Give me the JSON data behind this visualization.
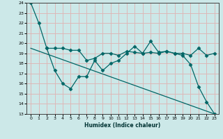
{
  "xlabel": "Humidex (Indice chaleur)",
  "bg_color": "#cce8e8",
  "grid_color": "#ddb8b8",
  "line_color": "#006666",
  "xlim_min": -0.5,
  "xlim_max": 23.5,
  "ylim_min": 13,
  "ylim_max": 24,
  "xticks": [
    0,
    1,
    2,
    3,
    4,
    5,
    6,
    7,
    8,
    9,
    10,
    11,
    12,
    13,
    14,
    15,
    16,
    17,
    18,
    19,
    20,
    21,
    22,
    23
  ],
  "yticks": [
    13,
    14,
    15,
    16,
    17,
    18,
    19,
    20,
    21,
    22,
    23,
    24
  ],
  "line1_x": [
    0,
    1,
    2,
    3,
    4,
    5,
    6,
    7,
    8,
    9,
    10,
    11,
    12,
    13,
    14,
    15,
    16,
    17,
    18,
    19,
    20,
    21,
    22,
    23
  ],
  "line1_y": [
    24.0,
    22.0,
    19.5,
    19.5,
    19.5,
    19.3,
    19.3,
    18.3,
    18.5,
    19.0,
    19.0,
    18.8,
    19.2,
    19.1,
    19.0,
    19.1,
    19.0,
    19.2,
    19.0,
    19.0,
    18.8,
    19.5,
    18.8,
    19.0
  ],
  "line2_x": [
    2,
    3,
    4,
    5,
    6,
    7,
    8,
    9,
    10,
    11,
    12,
    13,
    14,
    15,
    16,
    17,
    18,
    19,
    20,
    21,
    22,
    23
  ],
  "line2_y": [
    19.5,
    17.3,
    16.0,
    15.5,
    16.7,
    16.7,
    18.3,
    17.3,
    18.0,
    18.3,
    19.0,
    19.7,
    19.0,
    20.2,
    19.1,
    19.2,
    19.0,
    18.8,
    17.9,
    15.7,
    14.2,
    13.0
  ],
  "line3_x": [
    0,
    23
  ],
  "line3_y": [
    19.5,
    13.0
  ]
}
